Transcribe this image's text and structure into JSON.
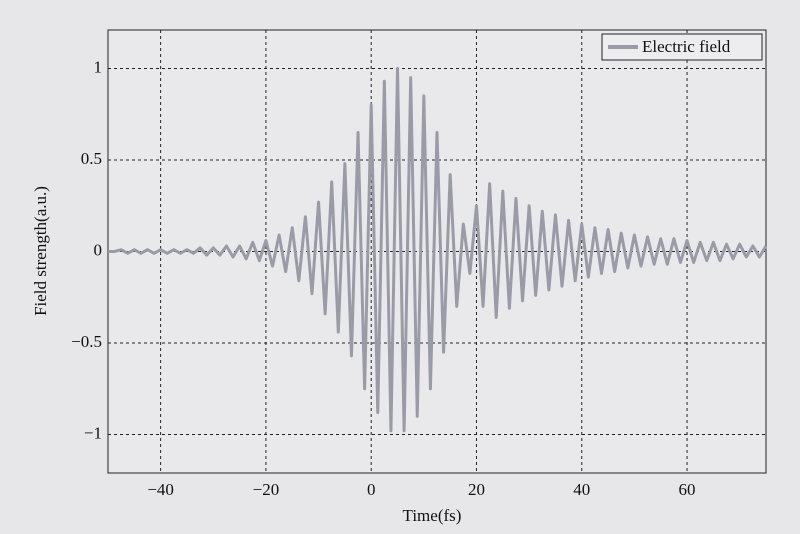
{
  "chart_data": {
    "type": "line",
    "xlabel": "Time(fs)",
    "ylabel": "Field strength(a.u.)",
    "x": [
      -50,
      -48.75,
      -47.5,
      -46.25,
      -45,
      -43.75,
      -42.5,
      -41.25,
      -40,
      -38.75,
      -37.5,
      -36.25,
      -35,
      -33.75,
      -32.5,
      -31.25,
      -30,
      -28.75,
      -27.5,
      -26.25,
      -25,
      -23.75,
      -22.5,
      -21.25,
      -20,
      -18.75,
      -17.5,
      -16.25,
      -15,
      -13.75,
      -12.5,
      -11.25,
      -10,
      -8.75,
      -7.5,
      -6.25,
      -5,
      -3.75,
      -2.5,
      -1.25,
      0,
      1.25,
      2.5,
      3.75,
      5,
      6.25,
      7.5,
      8.75,
      10,
      11.25,
      12.5,
      13.75,
      15,
      16.25,
      17.5,
      18.75,
      20,
      21.25,
      22.5,
      23.75,
      25,
      26.25,
      27.5,
      28.75,
      30,
      31.25,
      32.5,
      33.75,
      35,
      36.25,
      37.5,
      38.75,
      40,
      41.25,
      42.5,
      43.75,
      45,
      46.25,
      47.5,
      48.75,
      50,
      51.25,
      52.5,
      53.75,
      55,
      56.25,
      57.5,
      58.75,
      60,
      61.25,
      62.5,
      63.75,
      65,
      66.25,
      67.5,
      68.75,
      70,
      71.25,
      72.5,
      73.75,
      75
    ],
    "series": [
      {
        "name": "Electric field",
        "color": "#9b9ba8",
        "values": [
          0,
          0,
          0.01,
          -0.01,
          0.01,
          -0.01,
          0.01,
          -0.01,
          0.01,
          -0.01,
          0.01,
          -0.01,
          0.01,
          -0.01,
          0.02,
          -0.02,
          0.02,
          -0.02,
          0.03,
          -0.03,
          0.03,
          -0.04,
          0.05,
          -0.05,
          0.06,
          -0.08,
          0.09,
          -0.11,
          0.13,
          -0.16,
          0.19,
          -0.23,
          0.27,
          -0.34,
          0.38,
          -0.44,
          0.48,
          -0.57,
          0.65,
          -0.75,
          0.8,
          -0.88,
          0.93,
          -0.98,
          1.0,
          -0.98,
          0.95,
          -0.9,
          0.85,
          -0.75,
          0.65,
          -0.55,
          0.42,
          -0.3,
          0.15,
          -0.12,
          0.25,
          -0.3,
          0.37,
          -0.36,
          0.33,
          -0.31,
          0.29,
          -0.27,
          0.25,
          -0.24,
          0.22,
          -0.21,
          0.2,
          -0.19,
          0.17,
          -0.16,
          0.15,
          -0.14,
          0.13,
          -0.12,
          0.12,
          -0.11,
          0.1,
          -0.09,
          0.09,
          -0.08,
          0.08,
          -0.07,
          0.07,
          -0.07,
          0.07,
          -0.06,
          0.06,
          -0.06,
          0.05,
          -0.05,
          0.05,
          -0.05,
          0.04,
          -0.04,
          0.04,
          -0.03,
          0.03,
          -0.03,
          0.03
        ]
      }
    ],
    "xlim": [
      -50,
      75
    ],
    "xticks": [
      {
        "value": -40,
        "label": "−40"
      },
      {
        "value": -20,
        "label": "−20"
      },
      0,
      20,
      40,
      60
    ],
    "ylim": [
      -1.21,
      1.21
    ],
    "yticks": [
      {
        "value": -1,
        "label": "−1"
      },
      {
        "value": -0.5,
        "label": "−0.5"
      },
      0,
      0.5,
      1
    ],
    "grid": true,
    "legend": "upper right"
  }
}
